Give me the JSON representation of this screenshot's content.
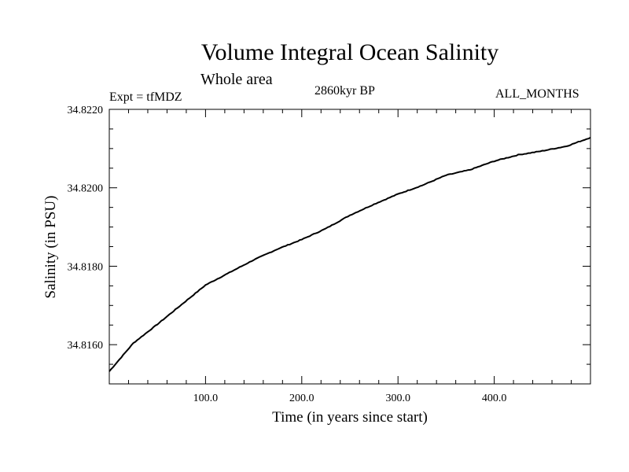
{
  "header": {
    "title": "Volume Integral Ocean Salinity",
    "subtitle": "Whole area",
    "expt": "Expt = tfMDZ",
    "period": "2860kyr BP",
    "months": "ALL_MONTHS"
  },
  "chart_data": {
    "type": "line",
    "title": "Volume Integral Ocean Salinity",
    "xlabel": "Time (in years since start)",
    "ylabel": "Salinity (in PSU)",
    "xlim": [
      0,
      500
    ],
    "ylim": [
      34.815,
      34.822
    ],
    "x_ticks": [
      100,
      200,
      300,
      400
    ],
    "x_tick_labels": [
      "100.0",
      "200.0",
      "300.0",
      "400.0"
    ],
    "y_ticks": [
      34.816,
      34.818,
      34.82,
      34.822
    ],
    "y_tick_labels": [
      "34.8160",
      "34.8180",
      "34.8200",
      "34.8220"
    ],
    "grid": false,
    "series": [
      {
        "name": "Volume integral ocean salinity",
        "color": "#000000",
        "x": [
          0,
          25,
          50,
          75,
          100,
          125,
          150,
          175,
          200,
          225,
          250,
          275,
          300,
          325,
          350,
          375,
          400,
          425,
          450,
          475,
          500
        ],
        "values": [
          34.81532,
          34.81604,
          34.81652,
          34.81702,
          34.81752,
          34.81784,
          34.81816,
          34.81844,
          34.81868,
          34.81896,
          34.8193,
          34.81958,
          34.81984,
          34.82006,
          34.82032,
          34.82046,
          34.82068,
          34.82084,
          34.82094,
          34.82106,
          34.82128
        ]
      }
    ]
  }
}
